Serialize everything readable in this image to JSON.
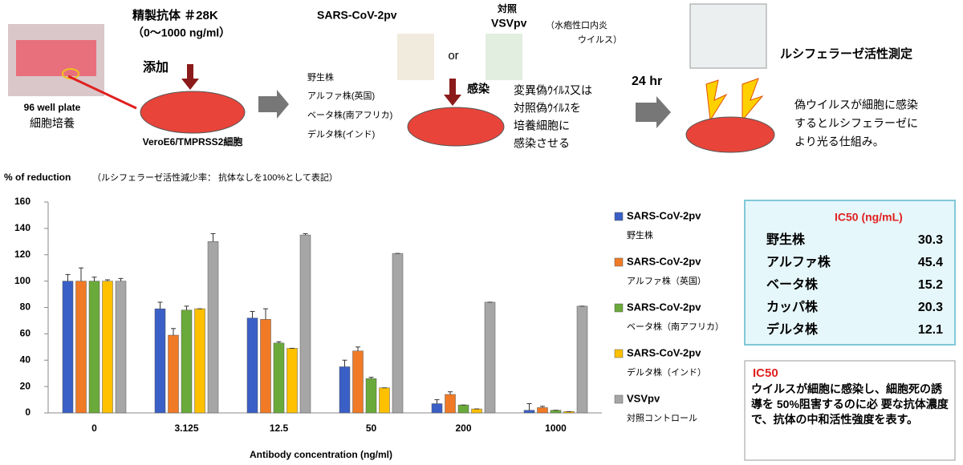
{
  "workflow": {
    "plate_label": "96 well plate",
    "plate_sub": "細胞培養",
    "antibody": "精製抗体 ＃28K",
    "antibody_range": "（0～1000 ng/ml）",
    "add": "添加",
    "cells": "VeroE6/TMPRSS2細胞",
    "pv": "SARS-CoV-2pv",
    "or": "or",
    "control": "対照",
    "vsv": "VSVpv",
    "vsv_note": [
      "（水疱性口内炎",
      "ウイルス）"
    ],
    "strains": [
      "野生株",
      "アルファ株(英国)",
      "ベータ株(南アフリカ)",
      "デルタ株(インド)"
    ],
    "infect": "感染",
    "infect_note": [
      "変異偽ｳｲﾙｽ又は",
      "対照偽ｳｲﾙｽを",
      "培養細胞に",
      "感染させる"
    ],
    "time": "24 hr",
    "measure": "ルシフェラーゼ活性測定",
    "measure_note": [
      "偽ウイルスが細胞に感染",
      "するとルシフェラーゼに",
      "より光る仕組み。"
    ]
  },
  "chart_data": {
    "type": "bar",
    "title": "% of reduction",
    "subtitle": "（ルシフェラーゼ活性減少率： 抗体なしを100%として表記）",
    "x_label": "Antibody concentration (ng/ml)",
    "categories": [
      "0",
      "3.125",
      "12.5",
      "50",
      "200",
      "1000"
    ],
    "series": [
      {
        "name": "SARS-CoV-2pv",
        "strain": "野生株",
        "color": "#3a5fc6",
        "values": [
          100,
          79,
          72,
          35,
          7,
          2
        ],
        "errors": [
          5,
          5,
          5,
          5,
          3,
          5
        ]
      },
      {
        "name": "SARS-CoV-2pv",
        "strain": "アルファ株（英国）",
        "color": "#f07a26",
        "values": [
          100,
          59,
          71,
          47,
          14,
          4
        ],
        "errors": [
          10,
          5,
          8,
          3,
          2,
          1
        ]
      },
      {
        "name": "SARS-CoV-2pv",
        "strain": "ベータ株（南アフリカ）",
        "color": "#6aaa3a",
        "values": [
          100,
          78,
          53,
          26,
          6,
          2
        ],
        "errors": [
          3,
          3,
          1,
          1,
          0,
          0
        ]
      },
      {
        "name": "SARS-CoV-2pv",
        "strain": "デルタ株（インド）",
        "color": "#ffc000",
        "values": [
          100,
          79,
          49,
          19,
          3,
          1
        ],
        "errors": [
          1,
          0,
          0,
          0,
          0,
          0
        ]
      },
      {
        "name": "VSVpv",
        "strain": "対照コントロール",
        "color": "#a6a6a6",
        "values": [
          100,
          130,
          135,
          121,
          84,
          81
        ],
        "errors": [
          2,
          6,
          1,
          0,
          0,
          0
        ]
      }
    ],
    "ylim": [
      0,
      160
    ],
    "yticks": [
      0,
      20,
      40,
      60,
      80,
      100,
      120,
      140,
      160
    ],
    "grid": false,
    "legend": "right"
  },
  "ic50_table": {
    "header": "IC50 (ng/mL)",
    "rows": [
      [
        "野生株",
        "30.3"
      ],
      [
        "アルファ株",
        "45.4"
      ],
      [
        "ベータ株",
        "15.2"
      ],
      [
        "カッパ株",
        "20.3"
      ],
      [
        "デルタ株",
        "12.1"
      ]
    ]
  },
  "note": {
    "title": "IC50",
    "text": "ウイルスが細胞に感染し、細胞死の誘導を 50%阻害するのに必 要な抗体濃度で、抗体の中和活性強度を表す。"
  }
}
